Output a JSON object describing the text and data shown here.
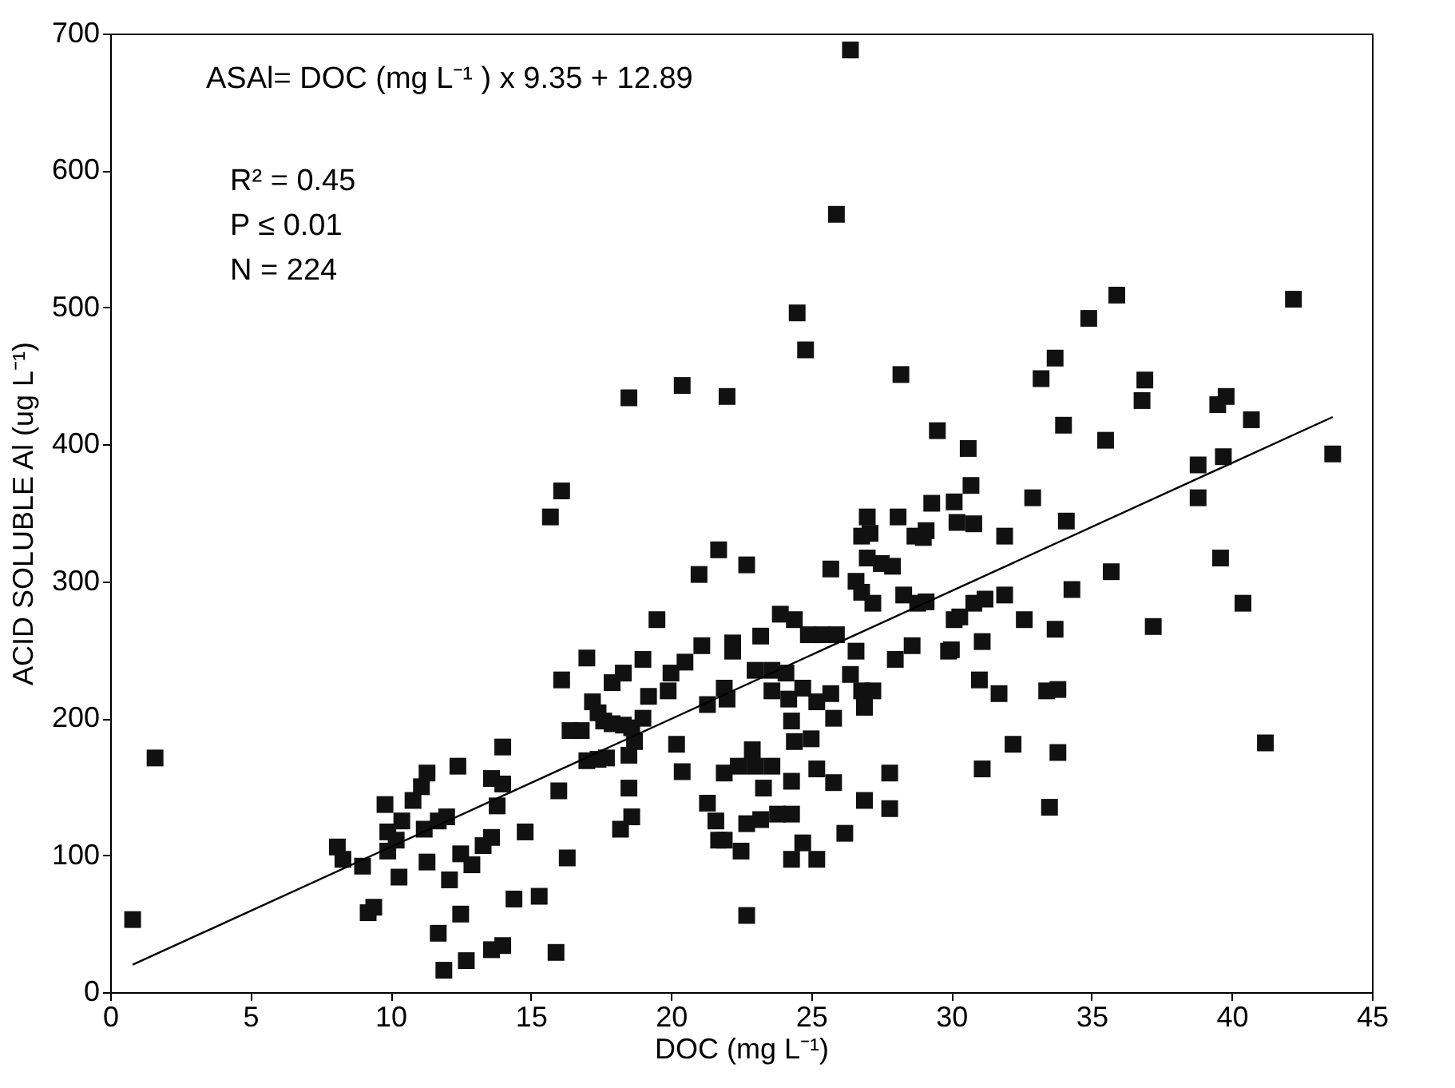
{
  "chart_data": {
    "type": "scatter",
    "xlabel": "DOC (mg L⁻¹)",
    "ylabel": "ACID SOLUBLE Al (ug L⁻¹)",
    "annotations": [
      "ASAl= DOC (mg L⁻¹ ) x 9.35 + 12.89",
      "R² = 0.45",
      "P ≤ 0.01",
      "N  = 224"
    ],
    "xlim": [
      0,
      45
    ],
    "xticks": [
      0,
      5,
      10,
      15,
      20,
      25,
      30,
      35,
      40,
      45
    ],
    "ylim": [
      0,
      700
    ],
    "yticks": [
      0,
      100,
      200,
      300,
      400,
      500,
      600,
      700
    ],
    "series": [
      {
        "marker": "square",
        "color": "#111111",
        "x": [
          0.8,
          1.6,
          8.1,
          8.3,
          9.0,
          9.2,
          9.4,
          9.8,
          9.9,
          10.2,
          9.9,
          10.3,
          10.4,
          10.8,
          11.1,
          11.3,
          11.2,
          11.3,
          11.7,
          12.0,
          11.7,
          11.9,
          12.1,
          12.4,
          12.5,
          12.5,
          12.9,
          12.7,
          13.6,
          14.0,
          13.3,
          13.6,
          13.6,
          14.0,
          13.8,
          14.0,
          14.8,
          14.4,
          15.3,
          15.9,
          16.1,
          16.3,
          16.0,
          17.0,
          17.2,
          17.4,
          17.6,
          17.9,
          18.3,
          18.6,
          16.4,
          16.8,
          17.0,
          17.4,
          17.7,
          18.5,
          18.7,
          19.0,
          17.9,
          18.3,
          19.0,
          19.2,
          19.9,
          18.5,
          18.6,
          18.2,
          20.2,
          20.4,
          20.0,
          20.5,
          19.5,
          21.1,
          22.2,
          22.2,
          21.3,
          21.9,
          22.0,
          21.0,
          21.7,
          22.7,
          23.2,
          23.0,
          23.6,
          24.1,
          23.9,
          24.4,
          24.9,
          25.4,
          25.9,
          23.6,
          24.2,
          24.7,
          25.2,
          25.7,
          24.3,
          24.4,
          25.0,
          25.8,
          21.3,
          21.6,
          21.7,
          21.9,
          21.9,
          22.4,
          22.9,
          23.0,
          23.6,
          23.3,
          22.7,
          23.2,
          23.8,
          24.3,
          22.5,
          24.3,
          25.2,
          25.8,
          24.7,
          24.3,
          25.2,
          22.7,
          26.2,
          25.7,
          26.6,
          26.4,
          26.8,
          26.9,
          27.2,
          26.8,
          27.0,
          27.5,
          27.9,
          26.6,
          26.8,
          27.2,
          28.3,
          28.8,
          28.0,
          28.6,
          27.8,
          26.9,
          27.8,
          28.7,
          29.9,
          30.1,
          30.6,
          38.8,
          39.7,
          43.6,
          30.7,
          29.3,
          30.1,
          32.9,
          29.1,
          30.2,
          30.8,
          31.9,
          34.1,
          38.8,
          39.6,
          35.7,
          29.1,
          30.3,
          30.8,
          31.2,
          31.9,
          34.3,
          32.6,
          33.7,
          37.2,
          40.4,
          30.0,
          31.1,
          31.0,
          31.7,
          33.4,
          33.8,
          32.2,
          41.2,
          31.1,
          33.8,
          33.5,
          25.9,
          24.5,
          24.8,
          18.5,
          20.4,
          22.0,
          28.2,
          35.9,
          34.9,
          33.7,
          33.2,
          36.9,
          36.8,
          42.2,
          39.8,
          39.5,
          40.7,
          34.0,
          35.5,
          29.5,
          16.1,
          15.7,
          27.0,
          27.1,
          28.1,
          29.0,
          26.4
        ],
        "values": [
          53,
          171,
          106,
          97,
          92,
          58,
          62,
          137,
          117,
          111,
          103,
          84,
          125,
          140,
          150,
          160,
          119,
          95,
          125,
          128,
          43,
          16,
          82,
          165,
          57,
          101,
          93,
          23,
          31,
          34,
          107,
          113,
          156,
          152,
          136,
          179,
          117,
          68,
          70,
          29,
          228,
          98,
          147,
          244,
          212,
          204,
          198,
          196,
          195,
          193,
          191,
          191,
          169,
          170,
          171,
          173,
          183,
          200,
          226,
          233,
          243,
          216,
          220,
          149,
          128,
          119,
          181,
          161,
          233,
          241,
          272,
          253,
          255,
          249,
          210,
          222,
          214,
          305,
          323,
          312,
          260,
          235,
          235,
          233,
          276,
          272,
          261,
          261,
          261,
          220,
          214,
          222,
          212,
          218,
          198,
          183,
          185,
          200,
          138,
          125,
          111,
          111,
          160,
          165,
          177,
          165,
          165,
          149,
          123,
          126,
          130,
          130,
          103,
          154,
          163,
          153,
          109,
          97,
          97,
          56,
          116,
          309,
          249,
          232,
          220,
          208,
          220,
          333,
          317,
          313,
          311,
          300,
          292,
          284,
          290,
          284,
          243,
          253,
          160,
          140,
          134,
          333,
          249,
          272,
          397,
          385,
          391,
          393,
          370,
          357,
          358,
          361,
          337,
          343,
          342,
          333,
          344,
          361,
          317,
          307,
          285,
          274,
          284,
          287,
          290,
          294,
          272,
          265,
          267,
          284,
          250,
          256,
          228,
          218,
          220,
          221,
          181,
          182,
          163,
          175,
          135,
          568,
          496,
          469,
          434,
          443,
          435,
          451,
          509,
          492,
          463,
          448,
          447,
          432,
          506,
          435,
          429,
          418,
          414,
          403,
          410,
          366,
          347,
          347,
          335,
          347,
          332,
          688
        ]
      },
      {
        "type": "line",
        "line_style": "solid",
        "color": "#000000",
        "x": [
          0.8,
          43.6
        ],
        "values": [
          20,
          420
        ]
      }
    ]
  }
}
